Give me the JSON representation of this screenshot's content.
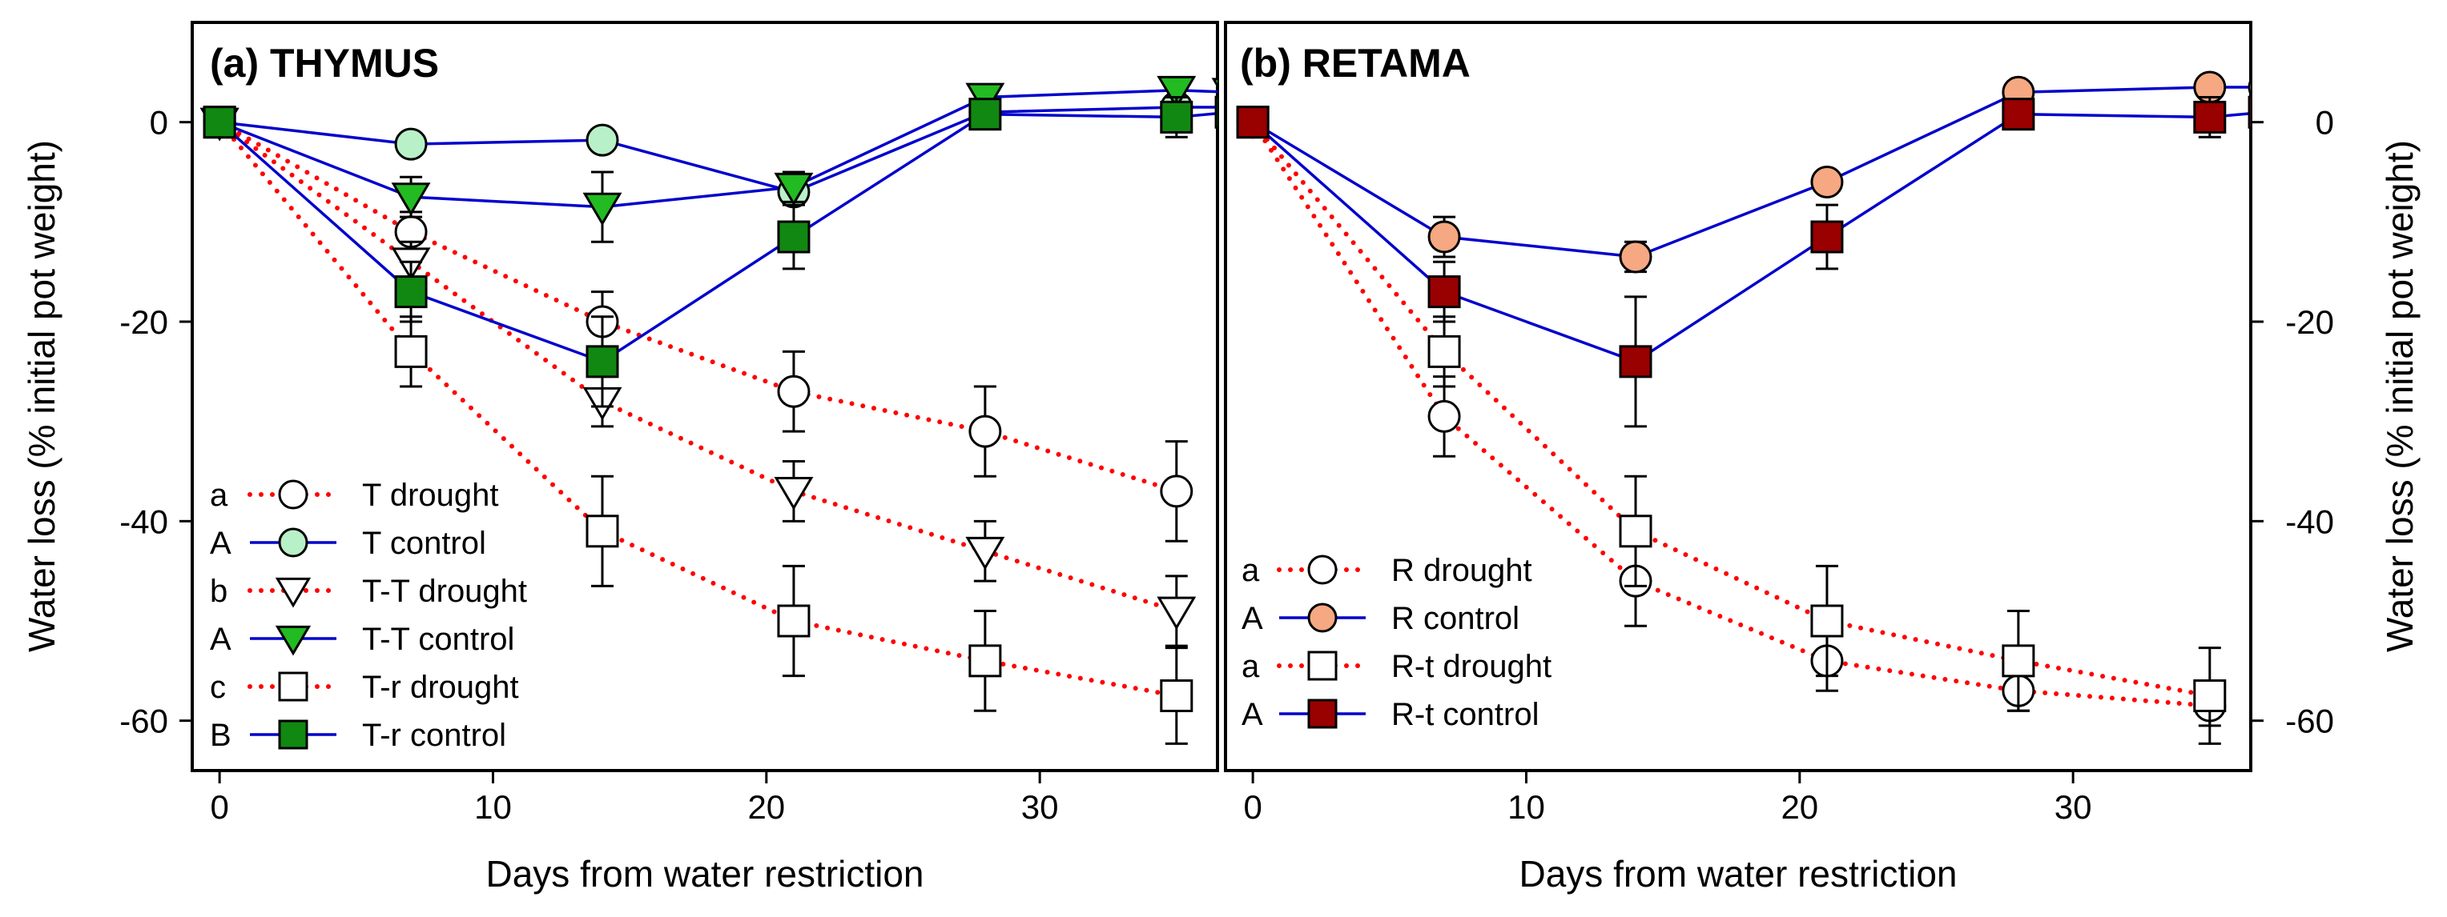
{
  "chart_data": [
    {
      "type": "line",
      "title": "(a) THYMUS",
      "xlabel": "Days from water restriction",
      "ylabel": "Water loss (% initial pot weight)",
      "xlim": [
        -1,
        36.5
      ],
      "ylim": [
        -65,
        10
      ],
      "xticks": [
        0,
        10,
        20,
        30
      ],
      "yticks": [
        0,
        -20,
        -40,
        -60
      ],
      "legend_position": "bottom-left",
      "series": [
        {
          "key": "T drought",
          "name": "T drought",
          "letter": "a",
          "line": "dotted",
          "color": "#ff0000",
          "marker": "circle",
          "fill": "#ffffff",
          "x": [
            0,
            7,
            14,
            21,
            28,
            35
          ],
          "y": [
            0,
            -11,
            -20,
            -27,
            -31,
            -37
          ],
          "err": [
            0,
            2,
            3,
            4,
            4.5,
            5
          ]
        },
        {
          "key": "T control",
          "name": "T control",
          "letter": "A",
          "line": "solid",
          "color": "#0000cc",
          "marker": "circle",
          "fill": "#b8f0c8",
          "x": [
            0,
            7,
            14,
            21,
            28,
            35,
            37
          ],
          "y": [
            0,
            -2.2,
            -1.8,
            -7,
            1,
            1.5,
            1.5
          ],
          "err": [
            0,
            0,
            0,
            0,
            0,
            0,
            0
          ]
        },
        {
          "key": "T-T drought",
          "name": "T-T drought",
          "letter": "b",
          "line": "dotted",
          "color": "#ff0000",
          "marker": "triangle-down",
          "fill": "#ffffff",
          "x": [
            0,
            7,
            14,
            21,
            28,
            35
          ],
          "y": [
            0,
            -14,
            -28,
            -37,
            -43,
            -49
          ],
          "err": [
            0,
            2,
            2.5,
            3,
            3,
            3.5
          ]
        },
        {
          "key": "T-T control",
          "name": "T-T control",
          "letter": "A",
          "line": "solid",
          "color": "#0000cc",
          "marker": "triangle-down",
          "fill": "#22bb22",
          "x": [
            0,
            7,
            14,
            21,
            28,
            35,
            37
          ],
          "y": [
            0,
            -7.5,
            -8.5,
            -6.5,
            2.5,
            3.2,
            3
          ],
          "err": [
            0,
            2,
            3.5,
            1.5,
            0,
            0,
            0
          ]
        },
        {
          "key": "T-r drought",
          "name": "T-r drought",
          "letter": "c",
          "line": "dotted",
          "color": "#ff0000",
          "marker": "square",
          "fill": "#ffffff",
          "x": [
            0,
            7,
            14,
            21,
            28,
            35
          ],
          "y": [
            0,
            -23,
            -41,
            -50,
            -54,
            -57.5
          ],
          "err": [
            0,
            3.5,
            5.5,
            5.5,
            5,
            4.8
          ]
        },
        {
          "key": "T-r control",
          "name": "T-r control",
          "letter": "B",
          "line": "solid",
          "color": "#0000cc",
          "marker": "square",
          "fill": "#118811",
          "x": [
            0,
            7,
            14,
            21,
            28,
            35,
            37
          ],
          "y": [
            0,
            -17,
            -24,
            -11.5,
            0.8,
            0.5,
            1
          ],
          "err": [
            0,
            3,
            4.5,
            3.2,
            1.5,
            2,
            0
          ]
        }
      ]
    },
    {
      "type": "line",
      "title": "(b) RETAMA",
      "xlabel": "Days from water restriction",
      "ylabel": "Water loss (% initial pot weight)",
      "xlim": [
        -1,
        36.5
      ],
      "ylim": [
        -65,
        10
      ],
      "xticks": [
        0,
        10,
        20,
        30
      ],
      "yticks": [
        0,
        -20,
        -40,
        -60
      ],
      "legend_position": "bottom-left",
      "series": [
        {
          "key": "R drought",
          "name": "R drought",
          "letter": "a",
          "line": "dotted",
          "color": "#ff0000",
          "marker": "circle",
          "fill": "#ffffff",
          "x": [
            0,
            7,
            14,
            21,
            28,
            35
          ],
          "y": [
            0,
            -29.5,
            -46,
            -54,
            -57,
            -58.5
          ],
          "err": [
            0,
            4,
            4.5,
            3,
            2,
            2
          ]
        },
        {
          "key": "R control",
          "name": "R control",
          "letter": "A",
          "line": "solid",
          "color": "#0000cc",
          "marker": "circle",
          "fill": "#f5a882",
          "x": [
            0,
            7,
            14,
            21,
            28,
            35,
            37
          ],
          "y": [
            0,
            -11.5,
            -13.5,
            -6,
            3,
            3.5,
            3.5
          ],
          "err": [
            0,
            2,
            1.5,
            1,
            0,
            0,
            0
          ]
        },
        {
          "key": "R-t drought",
          "name": "R-t drought",
          "letter": "a",
          "line": "dotted",
          "color": "#ff0000",
          "marker": "square",
          "fill": "#ffffff",
          "x": [
            0,
            7,
            14,
            21,
            28,
            35
          ],
          "y": [
            0,
            -23,
            -41,
            -50,
            -54,
            -57.5
          ],
          "err": [
            0,
            3.5,
            5.5,
            5.5,
            5,
            4.8
          ]
        },
        {
          "key": "R-t control",
          "name": "R-t control",
          "letter": "A",
          "line": "solid",
          "color": "#0000cc",
          "marker": "square",
          "fill": "#990000",
          "x": [
            0,
            7,
            14,
            21,
            28,
            35,
            37
          ],
          "y": [
            0,
            -17,
            -24,
            -11.5,
            0.8,
            0.5,
            1
          ],
          "err": [
            0,
            3,
            6.5,
            3.2,
            1.5,
            2,
            0
          ]
        }
      ]
    }
  ]
}
